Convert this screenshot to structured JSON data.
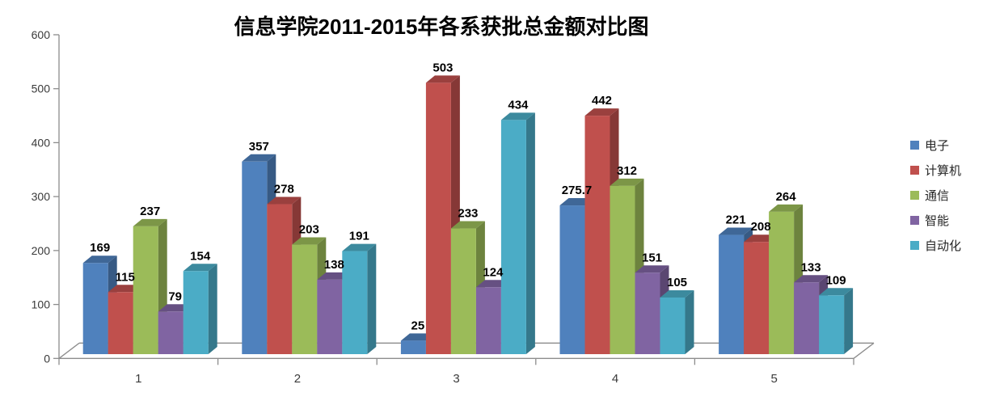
{
  "chart_data": {
    "type": "bar",
    "style": "3d-clustered-column",
    "title": "信息学院2011-2015年各系获批总金额对比图",
    "categories": [
      "1",
      "2",
      "3",
      "4",
      "5"
    ],
    "series": [
      {
        "name": "电子",
        "color": "#4F81BD",
        "values": [
          169,
          357,
          25,
          275.7,
          221
        ]
      },
      {
        "name": "计算机",
        "color": "#C0504D",
        "values": [
          115,
          278,
          503,
          442,
          208
        ]
      },
      {
        "name": "通信",
        "color": "#9BBB59",
        "values": [
          237,
          203,
          233,
          312,
          264
        ]
      },
      {
        "name": "智能",
        "color": "#8064A2",
        "values": [
          79,
          138,
          124,
          151,
          133
        ]
      },
      {
        "name": "自动化",
        "color": "#4BACC6",
        "values": [
          154,
          191,
          434,
          105,
          109
        ]
      }
    ],
    "ylim": [
      0,
      600
    ],
    "ytick_step": 100,
    "ytick_labels": [
      "0",
      "100",
      "200",
      "300",
      "400",
      "500",
      "600"
    ],
    "grid": false,
    "data_labels": true,
    "legend_position": "right",
    "axis_color": "#8D8D8D",
    "tick_label_color": "#3A3A3A",
    "data_label_color": "#000000"
  }
}
